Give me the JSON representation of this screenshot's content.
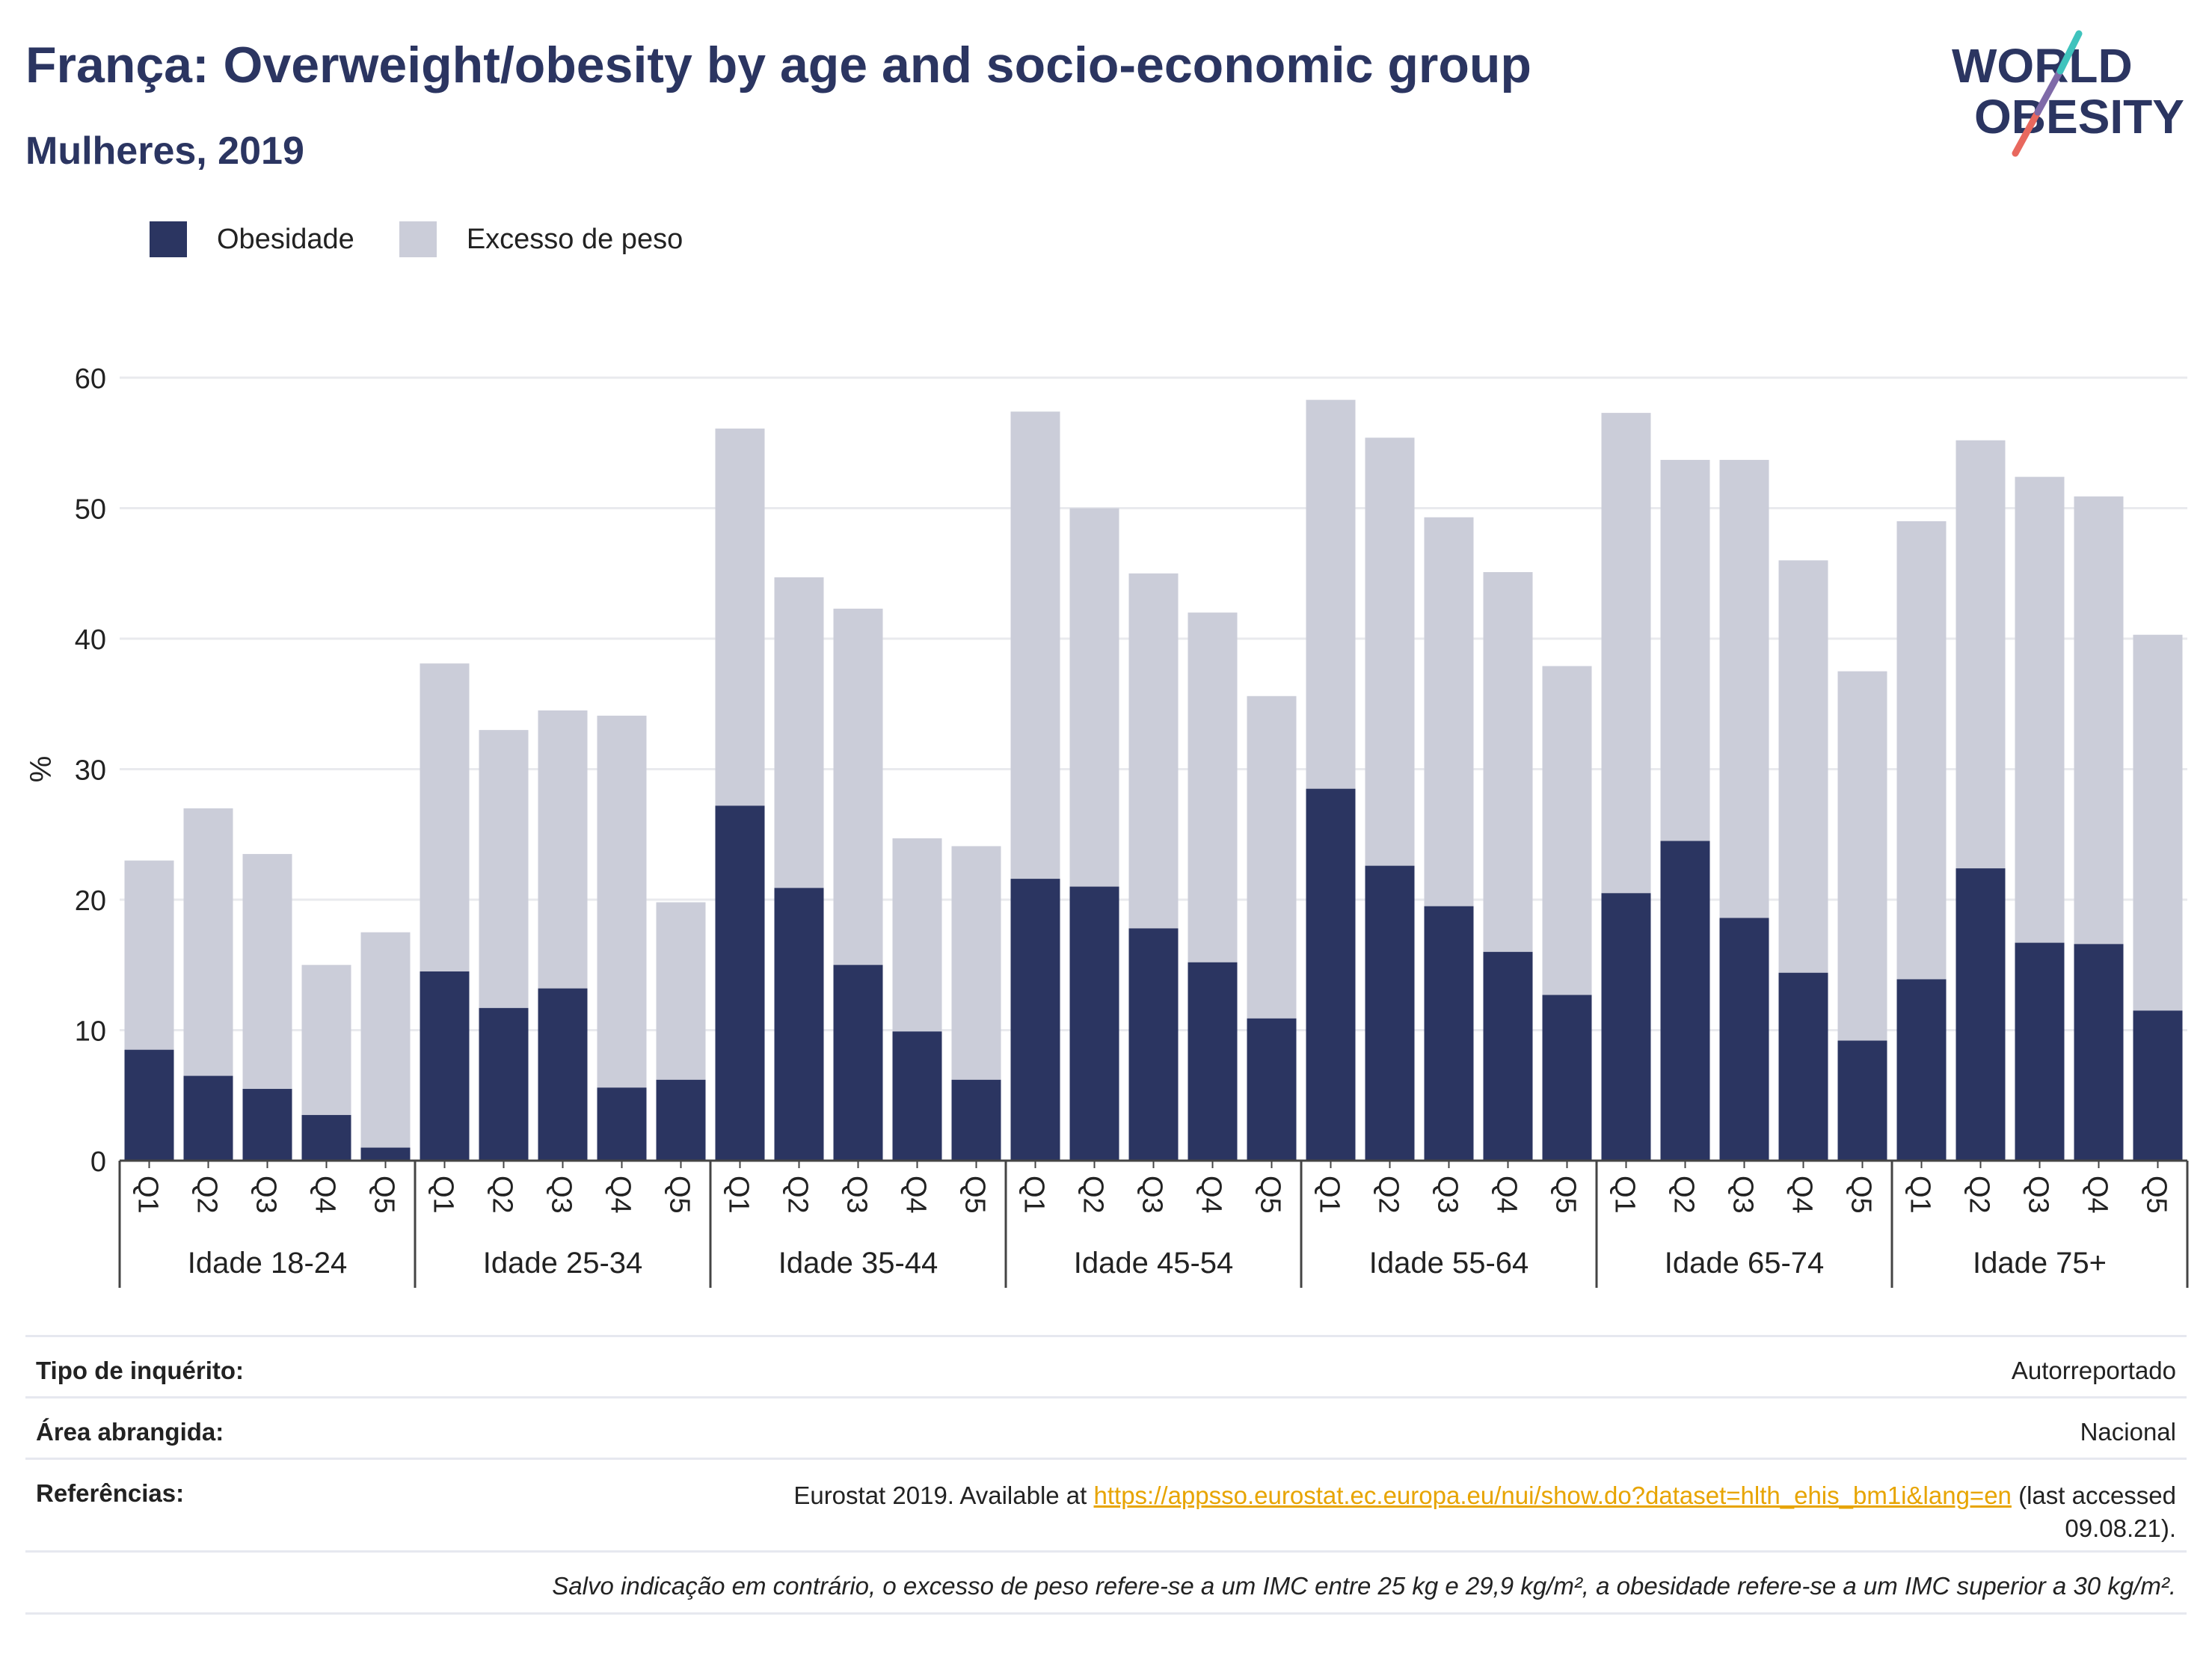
{
  "header": {
    "title": "França: Overweight/obesity by age and socio-economic group",
    "subtitle": "Mulheres, 2019"
  },
  "logo": {
    "line1": "WORLD",
    "line2": "OBESITY"
  },
  "legend": [
    {
      "label": "Obesidade",
      "color": "#2b3561"
    },
    {
      "label": "Excesso de peso",
      "color": "#cbcdd9"
    }
  ],
  "chart_data": {
    "type": "bar",
    "stacked": true,
    "ylabel": "%",
    "ylim": [
      0,
      60
    ],
    "yticks": [
      0,
      10,
      20,
      30,
      40,
      50,
      60
    ],
    "grid": true,
    "legend_position": "top-left",
    "groups": [
      {
        "name": "Idade 18-24",
        "categories": [
          "Q1",
          "Q2",
          "Q3",
          "Q4",
          "Q5"
        ],
        "obesity": [
          8.5,
          6.5,
          5.5,
          3.5,
          1.0
        ],
        "overweight": [
          14.5,
          20.5,
          18.0,
          11.5,
          16.5
        ]
      },
      {
        "name": "Idade 25-34",
        "categories": [
          "Q1",
          "Q2",
          "Q3",
          "Q4",
          "Q5"
        ],
        "obesity": [
          14.5,
          11.7,
          13.2,
          5.6,
          6.2
        ],
        "overweight": [
          23.6,
          21.3,
          21.3,
          28.5,
          13.6
        ]
      },
      {
        "name": "Idade 35-44",
        "categories": [
          "Q1",
          "Q2",
          "Q3",
          "Q4",
          "Q5"
        ],
        "obesity": [
          27.2,
          20.9,
          15.0,
          9.9,
          6.2
        ],
        "overweight": [
          28.9,
          23.8,
          27.3,
          14.8,
          17.9
        ]
      },
      {
        "name": "Idade 45-54",
        "categories": [
          "Q1",
          "Q2",
          "Q3",
          "Q4",
          "Q5"
        ],
        "obesity": [
          21.6,
          21.0,
          17.8,
          15.2,
          10.9
        ],
        "overweight": [
          35.8,
          29.0,
          27.2,
          26.8,
          24.7
        ]
      },
      {
        "name": "Idade 55-64",
        "categories": [
          "Q1",
          "Q2",
          "Q3",
          "Q4",
          "Q5"
        ],
        "obesity": [
          28.5,
          22.6,
          19.5,
          16.0,
          12.7
        ],
        "overweight": [
          29.8,
          32.8,
          29.8,
          29.1,
          25.2
        ]
      },
      {
        "name": "Idade 65-74",
        "categories": [
          "Q1",
          "Q2",
          "Q3",
          "Q4",
          "Q5"
        ],
        "obesity": [
          20.5,
          24.5,
          18.6,
          14.4,
          9.2
        ],
        "overweight": [
          36.8,
          29.2,
          35.1,
          31.6,
          28.3
        ]
      },
      {
        "name": "Idade 75+",
        "categories": [
          "Q1",
          "Q2",
          "Q3",
          "Q4",
          "Q5"
        ],
        "obesity": [
          13.9,
          22.4,
          16.7,
          16.6,
          11.5
        ],
        "overweight": [
          35.1,
          32.8,
          35.7,
          34.3,
          28.8
        ]
      }
    ]
  },
  "meta": {
    "survey_type_label": "Tipo de inquérito:",
    "survey_type_value": "Autorreportado",
    "area_label": "Área abrangida:",
    "area_value": "Nacional",
    "references_label": "Referências:",
    "references_prefix": "Eurostat 2019. Available at ",
    "references_link": "https://appsso.eurostat.ec.europa.eu/nui/show.do?dataset=hlth_ehis_bm1i&lang=en",
    "references_suffix": " (last accessed 09.08.21).",
    "note": "Salvo indicação em contrário, o excesso de peso refere-se a um IMC entre 25 kg e 29,9 kg/m², a obesidade refere-se a um IMC superior a 30 kg/m²."
  }
}
